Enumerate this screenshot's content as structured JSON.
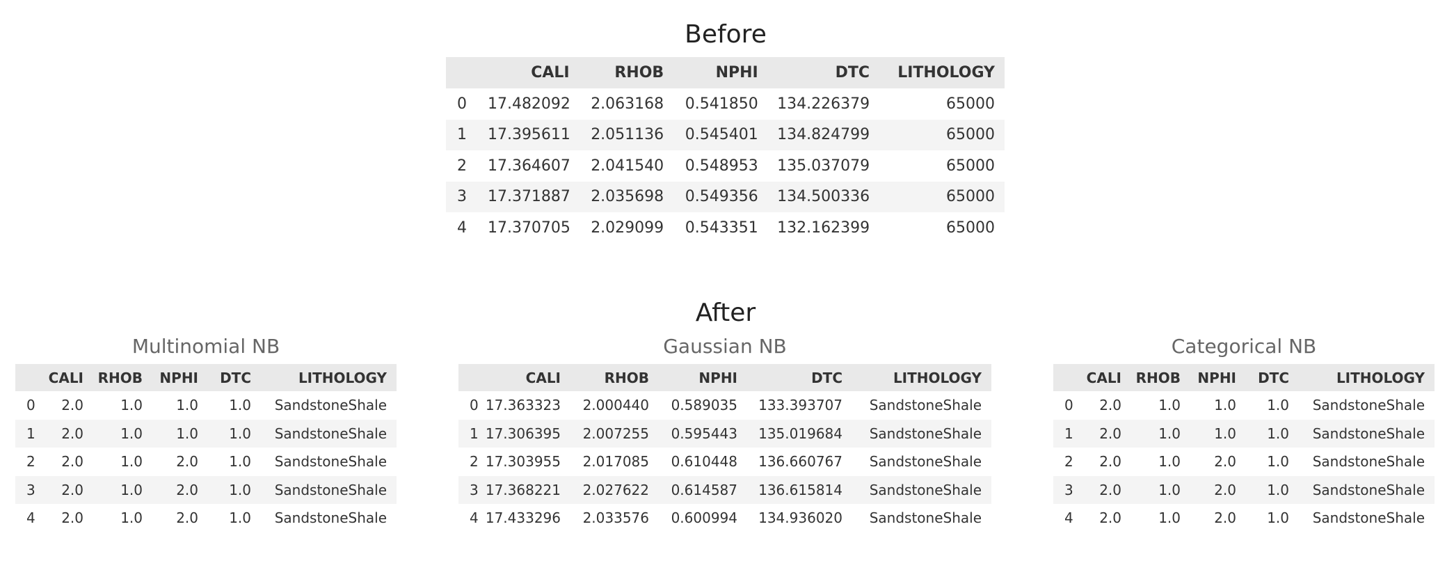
{
  "before": {
    "title": "Before",
    "columns": [
      "",
      "CALI",
      "RHOB",
      "NPHI",
      "DTC",
      "LITHOLOGY"
    ],
    "rows": [
      [
        "0",
        "17.482092",
        "2.063168",
        "0.541850",
        "134.226379",
        "65000"
      ],
      [
        "1",
        "17.395611",
        "2.051136",
        "0.545401",
        "134.824799",
        "65000"
      ],
      [
        "2",
        "17.364607",
        "2.041540",
        "0.548953",
        "135.037079",
        "65000"
      ],
      [
        "3",
        "17.371887",
        "2.035698",
        "0.549356",
        "134.500336",
        "65000"
      ],
      [
        "4",
        "17.370705",
        "2.029099",
        "0.543351",
        "132.162399",
        "65000"
      ]
    ]
  },
  "after": {
    "title": "After",
    "tables": [
      {
        "title": "Multinomial NB",
        "columns": [
          "",
          "CALI",
          "RHOB",
          "NPHI",
          "DTC",
          "LITHOLOGY"
        ],
        "rows": [
          [
            "0",
            "2.0",
            "1.0",
            "1.0",
            "1.0",
            "SandstoneShale"
          ],
          [
            "1",
            "2.0",
            "1.0",
            "1.0",
            "1.0",
            "SandstoneShale"
          ],
          [
            "2",
            "2.0",
            "1.0",
            "2.0",
            "1.0",
            "SandstoneShale"
          ],
          [
            "3",
            "2.0",
            "1.0",
            "2.0",
            "1.0",
            "SandstoneShale"
          ],
          [
            "4",
            "2.0",
            "1.0",
            "2.0",
            "1.0",
            "SandstoneShale"
          ]
        ]
      },
      {
        "title": "Gaussian NB",
        "columns": [
          "",
          "CALI",
          "RHOB",
          "NPHI",
          "DTC",
          "LITHOLOGY"
        ],
        "rows": [
          [
            "0",
            "17.363323",
            "2.000440",
            "0.589035",
            "133.393707",
            "SandstoneShale"
          ],
          [
            "1",
            "17.306395",
            "2.007255",
            "0.595443",
            "135.019684",
            "SandstoneShale"
          ],
          [
            "2",
            "17.303955",
            "2.017085",
            "0.610448",
            "136.660767",
            "SandstoneShale"
          ],
          [
            "3",
            "17.368221",
            "2.027622",
            "0.614587",
            "136.615814",
            "SandstoneShale"
          ],
          [
            "4",
            "17.433296",
            "2.033576",
            "0.600994",
            "134.936020",
            "SandstoneShale"
          ]
        ]
      },
      {
        "title": "Categorical NB",
        "columns": [
          "",
          "CALI",
          "RHOB",
          "NPHI",
          "DTC",
          "LITHOLOGY"
        ],
        "rows": [
          [
            "0",
            "2.0",
            "1.0",
            "1.0",
            "1.0",
            "SandstoneShale"
          ],
          [
            "1",
            "2.0",
            "1.0",
            "1.0",
            "1.0",
            "SandstoneShale"
          ],
          [
            "2",
            "2.0",
            "1.0",
            "2.0",
            "1.0",
            "SandstoneShale"
          ],
          [
            "3",
            "2.0",
            "1.0",
            "2.0",
            "1.0",
            "SandstoneShale"
          ],
          [
            "4",
            "2.0",
            "1.0",
            "2.0",
            "1.0",
            "SandstoneShale"
          ]
        ]
      }
    ]
  }
}
